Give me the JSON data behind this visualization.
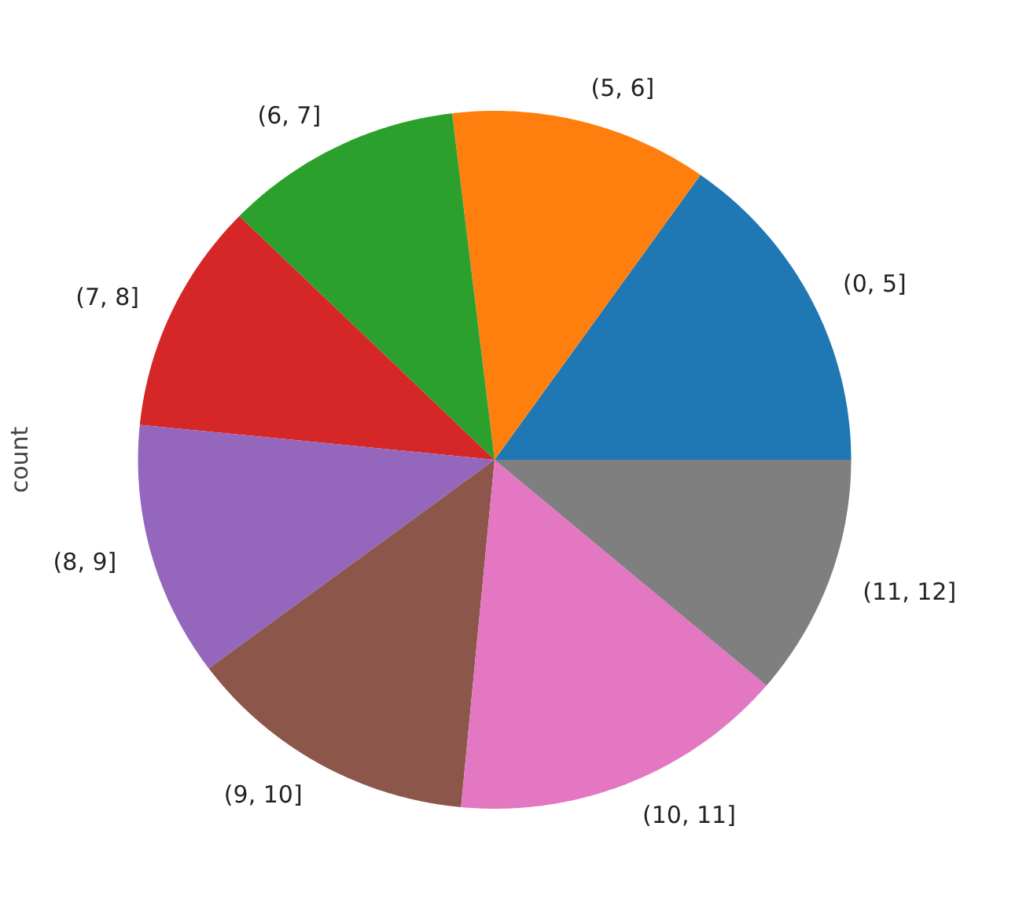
{
  "chart_data": {
    "type": "pie",
    "ylabel": "count",
    "categories": [
      "(0, 5]",
      "(5, 6]",
      "(6, 7]",
      "(7, 8]",
      "(8, 9]",
      "(9, 10]",
      "(10, 11]",
      "(11, 12]"
    ],
    "values": [
      15.2,
      11.7,
      10.8,
      10.7,
      11.8,
      13.3,
      15.3,
      11.2
    ],
    "colors": [
      "#1f77b4",
      "#ff7f0e",
      "#2ca02c",
      "#d62728",
      "#9467bd",
      "#8c564b",
      "#e377c2",
      "#7f7f7f"
    ]
  }
}
